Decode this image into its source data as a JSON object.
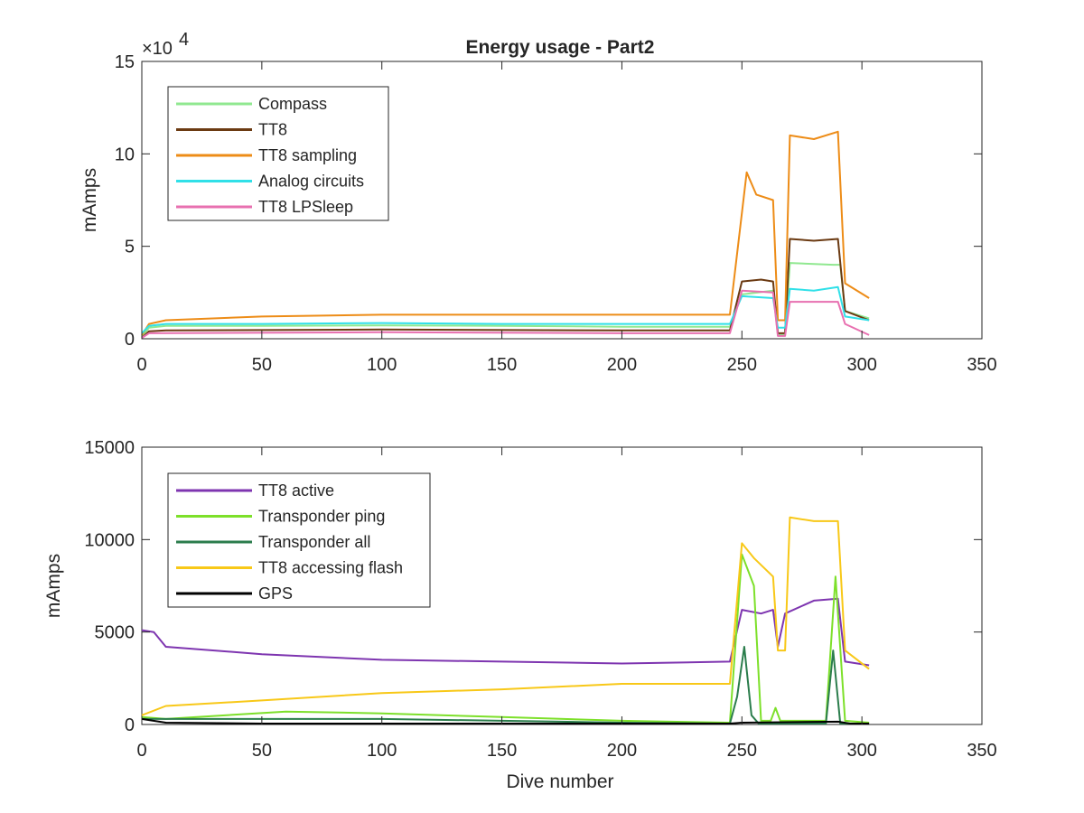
{
  "figure": {
    "title": "Energy usage - Part2",
    "xlabel": "Dive number"
  },
  "chart_data": [
    {
      "type": "line",
      "title": "Energy usage - Part2",
      "xlabel": "",
      "ylabel": "mAmps",
      "xlim": [
        0,
        350
      ],
      "ylim": [
        0,
        150000
      ],
      "xticks": [
        "0",
        "50",
        "100",
        "150",
        "200",
        "250",
        "300",
        "350"
      ],
      "yticks": [
        "0",
        "5",
        "10",
        "15"
      ],
      "y_exponent_label": "×10",
      "y_exponent_power": "4",
      "legend_position": "top-left",
      "grid": false,
      "series": [
        {
          "name": "Compass",
          "color": "#90e890",
          "points": [
            [
              0,
              1000
            ],
            [
              3,
              6000
            ],
            [
              10,
              7000
            ],
            [
              50,
              7000
            ],
            [
              100,
              7200
            ],
            [
              150,
              7000
            ],
            [
              200,
              6500
            ],
            [
              245,
              6500
            ],
            [
              250,
              24000
            ],
            [
              263,
              26000
            ],
            [
              265,
              2000
            ],
            [
              268,
              2000
            ],
            [
              270,
              41000
            ],
            [
              288,
              40000
            ],
            [
              291,
              40000
            ],
            [
              293,
              15000
            ],
            [
              303,
              11000
            ]
          ]
        },
        {
          "name": "TT8",
          "color": "#6b3a12",
          "points": [
            [
              0,
              500
            ],
            [
              3,
              4000
            ],
            [
              10,
              4500
            ],
            [
              100,
              5000
            ],
            [
              200,
              4500
            ],
            [
              245,
              4500
            ],
            [
              250,
              31000
            ],
            [
              258,
              32000
            ],
            [
              263,
              31000
            ],
            [
              265,
              3000
            ],
            [
              268,
              3000
            ],
            [
              270,
              54000
            ],
            [
              280,
              53000
            ],
            [
              290,
              54000
            ],
            [
              293,
              15000
            ],
            [
              303,
              10000
            ]
          ]
        },
        {
          "name": "TT8 sampling",
          "color": "#ed8c17",
          "points": [
            [
              0,
              2000
            ],
            [
              3,
              8000
            ],
            [
              10,
              10000
            ],
            [
              50,
              12000
            ],
            [
              100,
              13000
            ],
            [
              150,
              13000
            ],
            [
              200,
              13000
            ],
            [
              245,
              13000
            ],
            [
              252,
              90000
            ],
            [
              256,
              78000
            ],
            [
              263,
              75000
            ],
            [
              265,
              10000
            ],
            [
              268,
              10000
            ],
            [
              270,
              110000
            ],
            [
              280,
              108000
            ],
            [
              290,
              112000
            ],
            [
              293,
              30000
            ],
            [
              303,
              22000
            ]
          ]
        },
        {
          "name": "Analog circuits",
          "color": "#30e0e8",
          "points": [
            [
              0,
              3000
            ],
            [
              3,
              7000
            ],
            [
              10,
              8000
            ],
            [
              50,
              8000
            ],
            [
              100,
              8500
            ],
            [
              150,
              8000
            ],
            [
              200,
              8000
            ],
            [
              245,
              8000
            ],
            [
              250,
              23000
            ],
            [
              263,
              22000
            ],
            [
              265,
              6000
            ],
            [
              268,
              6000
            ],
            [
              270,
              27000
            ],
            [
              280,
              26000
            ],
            [
              290,
              28000
            ],
            [
              293,
              12000
            ],
            [
              303,
              10000
            ]
          ]
        },
        {
          "name": "TT8 LPSleep",
          "color": "#e870b0",
          "points": [
            [
              0,
              500
            ],
            [
              3,
              3000
            ],
            [
              100,
              3500
            ],
            [
              200,
              3000
            ],
            [
              245,
              3000
            ],
            [
              250,
              26000
            ],
            [
              263,
              25000
            ],
            [
              265,
              1500
            ],
            [
              268,
              1500
            ],
            [
              270,
              20000
            ],
            [
              290,
              20000
            ],
            [
              293,
              8000
            ],
            [
              303,
              2000
            ]
          ]
        }
      ]
    },
    {
      "type": "line",
      "title": "",
      "xlabel": "Dive number",
      "ylabel": "mAmps",
      "xlim": [
        0,
        350
      ],
      "ylim": [
        0,
        15000
      ],
      "xticks": [
        "0",
        "50",
        "100",
        "150",
        "200",
        "250",
        "300",
        "350"
      ],
      "yticks": [
        "0",
        "5000",
        "10000",
        "15000"
      ],
      "legend_position": "top-left",
      "grid": false,
      "series": [
        {
          "name": "TT8 active",
          "color": "#7e35b0",
          "points": [
            [
              0,
              5100
            ],
            [
              5,
              5000
            ],
            [
              10,
              4200
            ],
            [
              50,
              3800
            ],
            [
              100,
              3500
            ],
            [
              150,
              3400
            ],
            [
              200,
              3300
            ],
            [
              245,
              3400
            ],
            [
              250,
              6200
            ],
            [
              258,
              6000
            ],
            [
              263,
              6200
            ],
            [
              265,
              4200
            ],
            [
              268,
              6000
            ],
            [
              280,
              6700
            ],
            [
              290,
              6800
            ],
            [
              293,
              3400
            ],
            [
              303,
              3200
            ]
          ]
        },
        {
          "name": "Transponder ping",
          "color": "#7de02a",
          "points": [
            [
              0,
              400
            ],
            [
              10,
              300
            ],
            [
              60,
              700
            ],
            [
              100,
              600
            ],
            [
              150,
              400
            ],
            [
              200,
              200
            ],
            [
              245,
              100
            ],
            [
              250,
              9200
            ],
            [
              255,
              7500
            ],
            [
              258,
              200
            ],
            [
              262,
              200
            ],
            [
              264,
              900
            ],
            [
              266,
              200
            ],
            [
              285,
              200
            ],
            [
              289,
              8000
            ],
            [
              293,
              200
            ],
            [
              303,
              100
            ]
          ]
        },
        {
          "name": "Transponder all",
          "color": "#2b7d4c",
          "points": [
            [
              0,
              300
            ],
            [
              50,
              300
            ],
            [
              100,
              300
            ],
            [
              150,
              200
            ],
            [
              200,
              100
            ],
            [
              245,
              50
            ],
            [
              248,
              1500
            ],
            [
              251,
              4200
            ],
            [
              254,
              500
            ],
            [
              257,
              50
            ],
            [
              285,
              50
            ],
            [
              288,
              4000
            ],
            [
              291,
              50
            ],
            [
              303,
              50
            ]
          ]
        },
        {
          "name": "TT8 accessing flash",
          "color": "#f8c818",
          "points": [
            [
              0,
              500
            ],
            [
              10,
              1000
            ],
            [
              50,
              1300
            ],
            [
              100,
              1700
            ],
            [
              150,
              1900
            ],
            [
              200,
              2200
            ],
            [
              245,
              2200
            ],
            [
              250,
              9800
            ],
            [
              255,
              9000
            ],
            [
              263,
              8000
            ],
            [
              265,
              4000
            ],
            [
              268,
              4000
            ],
            [
              270,
              11200
            ],
            [
              280,
              11000
            ],
            [
              290,
              11000
            ],
            [
              293,
              4000
            ],
            [
              303,
              3000
            ]
          ]
        },
        {
          "name": "GPS",
          "color": "#000000",
          "points": [
            [
              0,
              300
            ],
            [
              10,
              100
            ],
            [
              50,
              50
            ],
            [
              100,
              50
            ],
            [
              150,
              50
            ],
            [
              200,
              50
            ],
            [
              245,
              50
            ],
            [
              250,
              100
            ],
            [
              290,
              150
            ],
            [
              295,
              50
            ],
            [
              303,
              50
            ]
          ]
        }
      ]
    }
  ]
}
